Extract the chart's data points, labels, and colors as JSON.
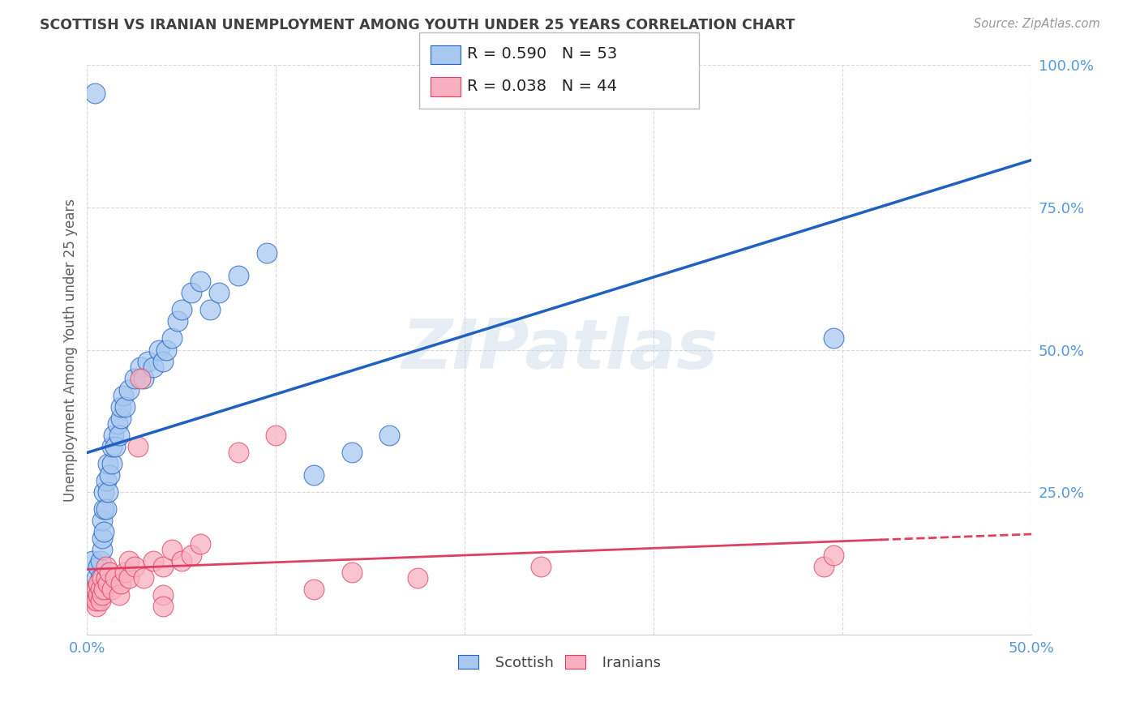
{
  "title": "SCOTTISH VS IRANIAN UNEMPLOYMENT AMONG YOUTH UNDER 25 YEARS CORRELATION CHART",
  "source": "Source: ZipAtlas.com",
  "ylabel": "Unemployment Among Youth under 25 years",
  "xlim": [
    0.0,
    0.5
  ],
  "ylim": [
    0.0,
    1.0
  ],
  "xticks": [
    0.0,
    0.1,
    0.2,
    0.3,
    0.4,
    0.5
  ],
  "xticklabels": [
    "0.0%",
    "",
    "",
    "",
    "",
    "50.0%"
  ],
  "yticks": [
    0.0,
    0.25,
    0.5,
    0.75,
    1.0
  ],
  "yticklabels": [
    "",
    "25.0%",
    "50.0%",
    "75.0%",
    "100.0%"
  ],
  "watermark": "ZIPatlas",
  "scottish_R": 0.59,
  "scottish_N": 53,
  "iranian_R": 0.038,
  "iranian_N": 44,
  "scottish_color": "#A8C8F0",
  "scottish_line_color": "#2060C0",
  "iranian_color": "#F8B0C0",
  "iranian_line_color": "#E04060",
  "background_color": "#FFFFFF",
  "grid_color": "#D8D8D8",
  "title_color": "#404040",
  "axis_label_color": "#606060",
  "tick_color": "#5599DD",
  "scottish_x": [
    0.003,
    0.004,
    0.005,
    0.005,
    0.006,
    0.006,
    0.007,
    0.007,
    0.007,
    0.008,
    0.008,
    0.008,
    0.009,
    0.009,
    0.009,
    0.01,
    0.01,
    0.011,
    0.011,
    0.012,
    0.013,
    0.013,
    0.014,
    0.015,
    0.016,
    0.017,
    0.018,
    0.018,
    0.019,
    0.02,
    0.022,
    0.025,
    0.028,
    0.03,
    0.032,
    0.035,
    0.038,
    0.04,
    0.042,
    0.045,
    0.048,
    0.05,
    0.055,
    0.06,
    0.065,
    0.07,
    0.08,
    0.095,
    0.12,
    0.14,
    0.16,
    0.395,
    0.004
  ],
  "scottish_y": [
    0.13,
    0.08,
    0.1,
    0.07,
    0.08,
    0.12,
    0.07,
    0.1,
    0.13,
    0.15,
    0.17,
    0.2,
    0.22,
    0.18,
    0.25,
    0.22,
    0.27,
    0.25,
    0.3,
    0.28,
    0.3,
    0.33,
    0.35,
    0.33,
    0.37,
    0.35,
    0.38,
    0.4,
    0.42,
    0.4,
    0.43,
    0.45,
    0.47,
    0.45,
    0.48,
    0.47,
    0.5,
    0.48,
    0.5,
    0.52,
    0.55,
    0.57,
    0.6,
    0.62,
    0.57,
    0.6,
    0.63,
    0.67,
    0.28,
    0.32,
    0.35,
    0.52,
    0.95
  ],
  "iranian_x": [
    0.003,
    0.004,
    0.004,
    0.005,
    0.005,
    0.005,
    0.006,
    0.006,
    0.007,
    0.007,
    0.008,
    0.008,
    0.009,
    0.01,
    0.01,
    0.011,
    0.012,
    0.013,
    0.015,
    0.017,
    0.018,
    0.02,
    0.022,
    0.022,
    0.025,
    0.027,
    0.03,
    0.035,
    0.04,
    0.045,
    0.05,
    0.055,
    0.06,
    0.08,
    0.1,
    0.14,
    0.175,
    0.24,
    0.39,
    0.395,
    0.028,
    0.04,
    0.04,
    0.12
  ],
  "iranian_y": [
    0.07,
    0.06,
    0.08,
    0.05,
    0.06,
    0.08,
    0.07,
    0.09,
    0.06,
    0.08,
    0.07,
    0.1,
    0.08,
    0.1,
    0.12,
    0.09,
    0.11,
    0.08,
    0.1,
    0.07,
    0.09,
    0.11,
    0.1,
    0.13,
    0.12,
    0.33,
    0.1,
    0.13,
    0.12,
    0.15,
    0.13,
    0.14,
    0.16,
    0.32,
    0.35,
    0.11,
    0.1,
    0.12,
    0.12,
    0.14,
    0.45,
    0.07,
    0.05,
    0.08
  ]
}
